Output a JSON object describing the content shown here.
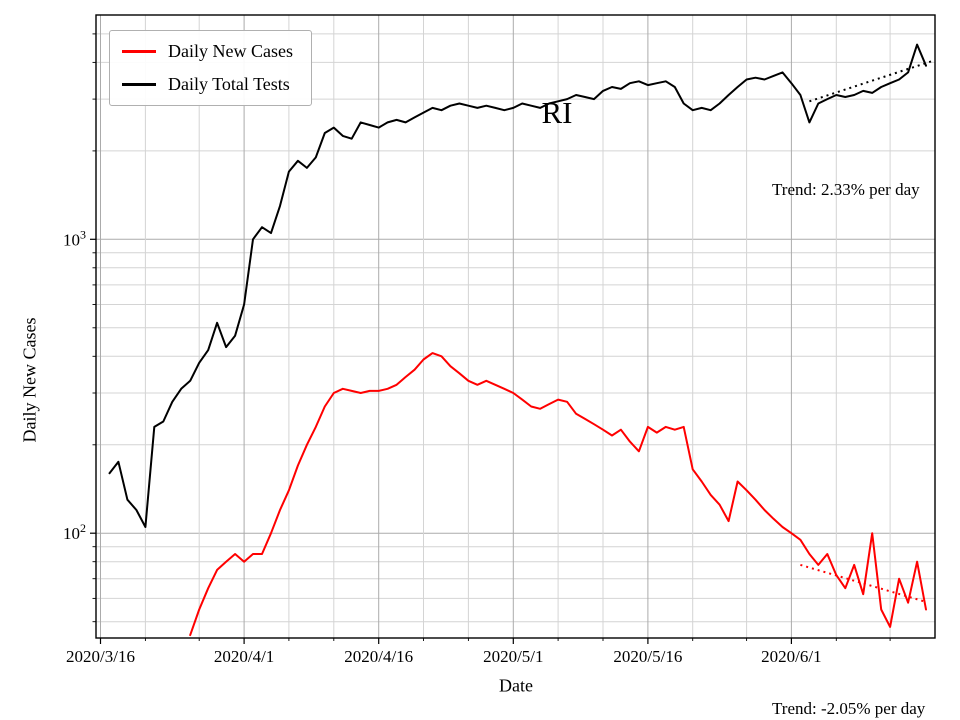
{
  "chart_data": {
    "type": "line",
    "state_label": "RI",
    "xlabel": "Date",
    "ylabel": "Daily New Cases",
    "yscale": "log",
    "ylim": [
      44,
      5800
    ],
    "x_domain_days": [
      -0.5,
      93
    ],
    "x_start_day": 1,
    "x_tick_labels": [
      "2020/3/16",
      "2020/4/1",
      "2020/4/16",
      "2020/5/1",
      "2020/5/16",
      "2020/6/1"
    ],
    "x_tick_days": [
      0,
      16,
      31,
      46,
      61,
      77
    ],
    "x_minor_days": [
      5,
      11,
      21,
      26,
      36,
      41,
      51,
      56,
      66,
      72,
      82,
      88
    ],
    "y_ticks": [
      {
        "value": 100,
        "base": "10",
        "exp": "2"
      },
      {
        "value": 1000,
        "base": "10",
        "exp": "3"
      }
    ],
    "grid": true,
    "legend_position": "upper-left",
    "dates": [
      "2020/3/17",
      "2020/3/18",
      "2020/3/19",
      "2020/3/20",
      "2020/3/21",
      "2020/3/22",
      "2020/3/23",
      "2020/3/24",
      "2020/3/25",
      "2020/3/26",
      "2020/3/27",
      "2020/3/28",
      "2020/3/29",
      "2020/3/30",
      "2020/3/31",
      "2020/4/1",
      "2020/4/2",
      "2020/4/3",
      "2020/4/4",
      "2020/4/5",
      "2020/4/6",
      "2020/4/7",
      "2020/4/8",
      "2020/4/9",
      "2020/4/10",
      "2020/4/11",
      "2020/4/12",
      "2020/4/13",
      "2020/4/14",
      "2020/4/15",
      "2020/4/16",
      "2020/4/17",
      "2020/4/18",
      "2020/4/19",
      "2020/4/20",
      "2020/4/21",
      "2020/4/22",
      "2020/4/23",
      "2020/4/24",
      "2020/4/25",
      "2020/4/26",
      "2020/4/27",
      "2020/4/28",
      "2020/4/29",
      "2020/4/30",
      "2020/5/1",
      "2020/5/2",
      "2020/5/3",
      "2020/5/4",
      "2020/5/5",
      "2020/5/6",
      "2020/5/7",
      "2020/5/8",
      "2020/5/9",
      "2020/5/10",
      "2020/5/11",
      "2020/5/12",
      "2020/5/13",
      "2020/5/14",
      "2020/5/15",
      "2020/5/16",
      "2020/5/17",
      "2020/5/18",
      "2020/5/19",
      "2020/5/20",
      "2020/5/21",
      "2020/5/22",
      "2020/5/23",
      "2020/5/24",
      "2020/5/25",
      "2020/5/26",
      "2020/5/27",
      "2020/5/28",
      "2020/5/29",
      "2020/5/30",
      "2020/5/31",
      "2020/6/1",
      "2020/6/2",
      "2020/6/3",
      "2020/6/4",
      "2020/6/5",
      "2020/6/6",
      "2020/6/7",
      "2020/6/8",
      "2020/6/9",
      "2020/6/10",
      "2020/6/11",
      "2020/6/12",
      "2020/6/13",
      "2020/6/14",
      "2020/6/15",
      "2020/6/16"
    ],
    "series": [
      {
        "name": "Daily New Cases",
        "color": "#ff0000",
        "values": [
          null,
          null,
          null,
          null,
          null,
          null,
          null,
          null,
          null,
          45,
          55,
          65,
          75,
          80,
          85,
          80,
          85,
          85,
          100,
          120,
          140,
          170,
          200,
          230,
          270,
          300,
          310,
          305,
          300,
          305,
          305,
          310,
          320,
          340,
          360,
          390,
          410,
          400,
          370,
          350,
          330,
          320,
          330,
          320,
          310,
          300,
          285,
          270,
          265,
          275,
          285,
          280,
          255,
          245,
          235,
          225,
          215,
          225,
          205,
          190,
          230,
          220,
          230,
          225,
          230,
          165,
          150,
          135,
          125,
          110,
          150,
          140,
          130,
          120,
          112,
          105,
          100,
          95,
          85,
          78,
          85,
          72,
          65,
          78,
          62,
          100,
          55,
          48,
          70,
          58,
          80,
          55
        ]
      },
      {
        "name": "Daily Total Tests",
        "color": "#000000",
        "values": [
          160,
          175,
          130,
          120,
          105,
          230,
          240,
          280,
          310,
          330,
          380,
          420,
          520,
          430,
          470,
          600,
          1000,
          1100,
          1050,
          1300,
          1700,
          1850,
          1750,
          1900,
          2300,
          2400,
          2250,
          2200,
          2500,
          2450,
          2400,
          2500,
          2550,
          2500,
          2600,
          2700,
          2800,
          2750,
          2850,
          2900,
          2850,
          2800,
          2850,
          2800,
          2750,
          2800,
          2900,
          2850,
          2800,
          2900,
          2950,
          3000,
          3100,
          3050,
          3000,
          3200,
          3300,
          3250,
          3400,
          3450,
          3350,
          3400,
          3450,
          3300,
          2900,
          2750,
          2800,
          2750,
          2900,
          3100,
          3300,
          3500,
          3550,
          3500,
          3600,
          3700,
          3400,
          3100,
          2500,
          2900,
          3000,
          3100,
          3050,
          3100,
          3200,
          3150,
          3300,
          3400,
          3500,
          3700,
          4600,
          3900
        ]
      }
    ],
    "trends": [
      {
        "label": "Trend: 2.33% per day",
        "pct_per_day": 2.33,
        "start_day": 79,
        "end_day": 93,
        "start_value": 2950,
        "color": "#000000"
      },
      {
        "label": "Trend: -2.05% per day",
        "pct_per_day": -2.05,
        "start_day": 78,
        "end_day": 92,
        "start_value": 78,
        "color": "#ff0000"
      }
    ]
  }
}
